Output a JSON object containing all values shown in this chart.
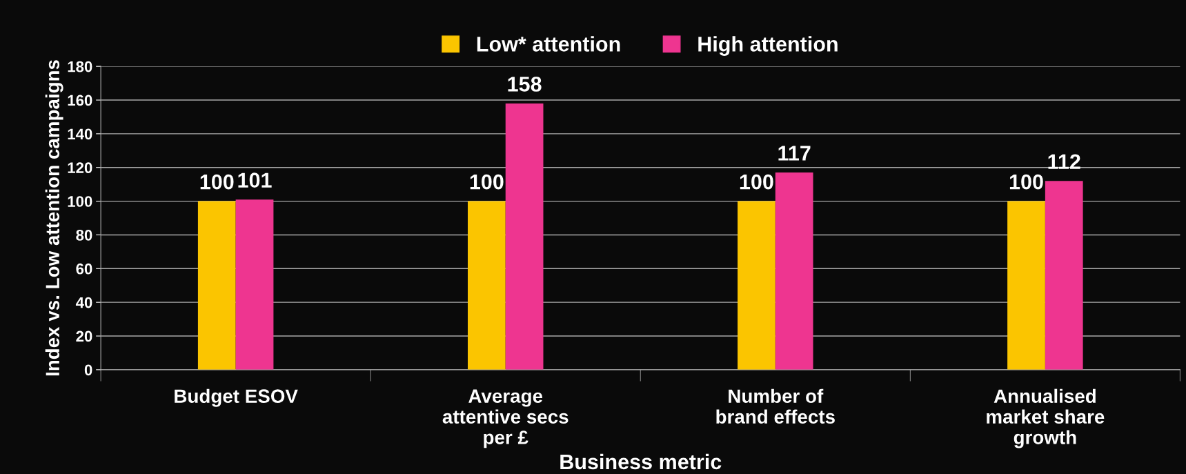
{
  "chart_data": {
    "type": "bar",
    "xlabel": "Business metric",
    "ylabel": "Index vs. Low attention campaigns",
    "categories": [
      "Budget ESOV",
      "Average\nattentive secs\nper £",
      "Number of\nbrand effects",
      "Annualised\nmarket share\ngrowth"
    ],
    "series": [
      {
        "name": "Low* attention",
        "color": "#fbc500",
        "values": [
          100,
          100,
          100,
          100
        ]
      },
      {
        "name": "High attention",
        "color": "#ee3590",
        "values": [
          101,
          158,
          117,
          112
        ]
      }
    ],
    "ylim": [
      0,
      180
    ],
    "yticks": [
      0,
      20,
      40,
      60,
      80,
      100,
      120,
      140,
      160,
      180
    ],
    "grid": "y",
    "legend": "top",
    "data_labels": true
  }
}
